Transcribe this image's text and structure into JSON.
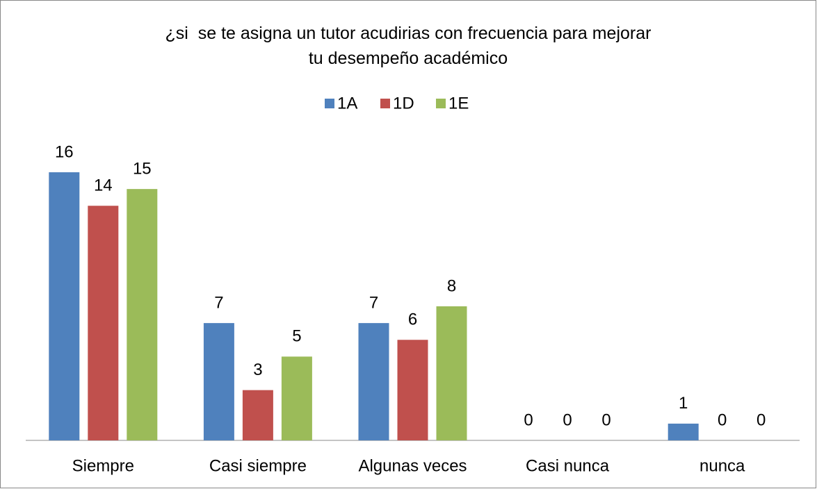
{
  "chart_data": {
    "type": "bar",
    "title": "¿si  se te asigna un tutor acudirias con frecuencia para mejorar tu desempeño académico",
    "categories": [
      "Siempre",
      "Casi siempre",
      "Algunas veces",
      "Casi nunca",
      "nunca"
    ],
    "series": [
      {
        "name": "1A",
        "color": "#4f81bd",
        "values": [
          16,
          7,
          7,
          0,
          1
        ]
      },
      {
        "name": "1D",
        "color": "#c0504d",
        "values": [
          14,
          3,
          6,
          0,
          0
        ]
      },
      {
        "name": "1E",
        "color": "#9bbb59",
        "values": [
          15,
          5,
          8,
          0,
          0
        ]
      }
    ],
    "legend": "top"
  }
}
